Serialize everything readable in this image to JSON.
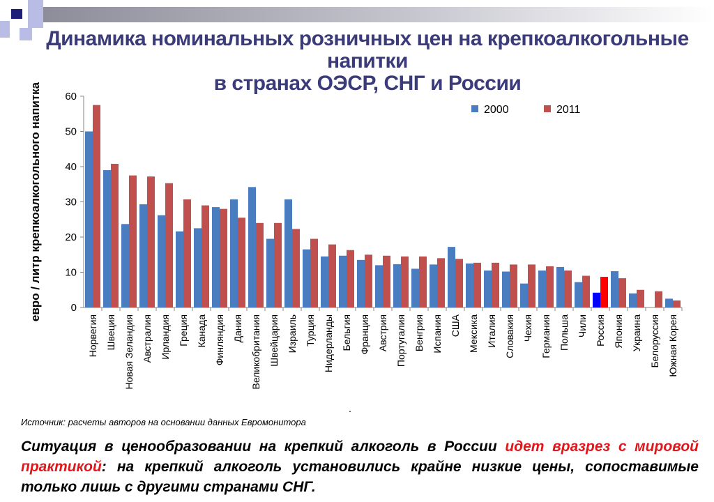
{
  "title_lines": [
    "Динамика номинальных розничных цен на крепкоалкогольные напитки",
    "в странах ОЭСР, СНГ и России"
  ],
  "chart_data": {
    "type": "bar",
    "ylabel": "евро / литр крепкоалкогольного напитка",
    "ylim": [
      0,
      60
    ],
    "yticks": [
      0,
      10,
      20,
      30,
      40,
      50,
      60
    ],
    "legend_position": "top-right",
    "categories": [
      "Норвегия",
      "Швеция",
      "Новая Зеландия",
      "Австралия",
      "Ирландия",
      "Греция",
      "Канада",
      "Финляндия",
      "Дания",
      "Великобритания",
      "Швейцария",
      "Израиль",
      "Турция",
      "Нидерланды",
      "Бельгия",
      "Франция",
      "Австрия",
      "Португалия",
      "Венгрия",
      "Испания",
      "США",
      "Мексика",
      "Италия",
      "Словакия",
      "Чехия",
      "Германия",
      "Польша",
      "Чили",
      "Россия",
      "Япония",
      "Украина",
      "Белоруссия",
      "Южная Корея"
    ],
    "series": [
      {
        "name": "2000",
        "color": "#4a7cc0",
        "values": [
          50,
          39,
          23.7,
          29.3,
          26.2,
          21.6,
          22.5,
          28.5,
          30.7,
          34.2,
          19.5,
          30.7,
          16.5,
          14.5,
          14.7,
          13.5,
          12,
          12.3,
          11,
          12.2,
          17.2,
          12.5,
          10.5,
          10.2,
          6.8,
          10.5,
          11.5,
          7.2,
          4.2,
          10.3,
          4,
          null,
          2.5
        ]
      },
      {
        "name": "2011",
        "color": "#c0504d",
        "values": [
          57.5,
          40.8,
          37.5,
          37.2,
          35.3,
          30.7,
          29,
          28,
          25.5,
          24,
          24,
          22.3,
          19.5,
          17.9,
          16.3,
          15,
          14.7,
          14.5,
          14.5,
          14,
          13.8,
          12.7,
          12.7,
          12.2,
          12.2,
          11.7,
          10.5,
          9,
          8.7,
          8.3,
          5,
          4.6,
          2
        ]
      }
    ],
    "highlight": {
      "category": "Россия",
      "colors": {
        "2000": "#0000ff",
        "2011": "#ff0000"
      }
    }
  },
  "dot_text": ".",
  "source": "Источник: расчеты авторов на основании данных Евромонитора",
  "summary": {
    "part1": "Ситуация в ценообразовании на крепкий алкоголь в России ",
    "highlight": "идет вразрез с мировой практикой",
    "part2": ": на крепкий алкоголь установились крайне низкие цены, сопоставимые только лишь с другими странами СНГ."
  }
}
